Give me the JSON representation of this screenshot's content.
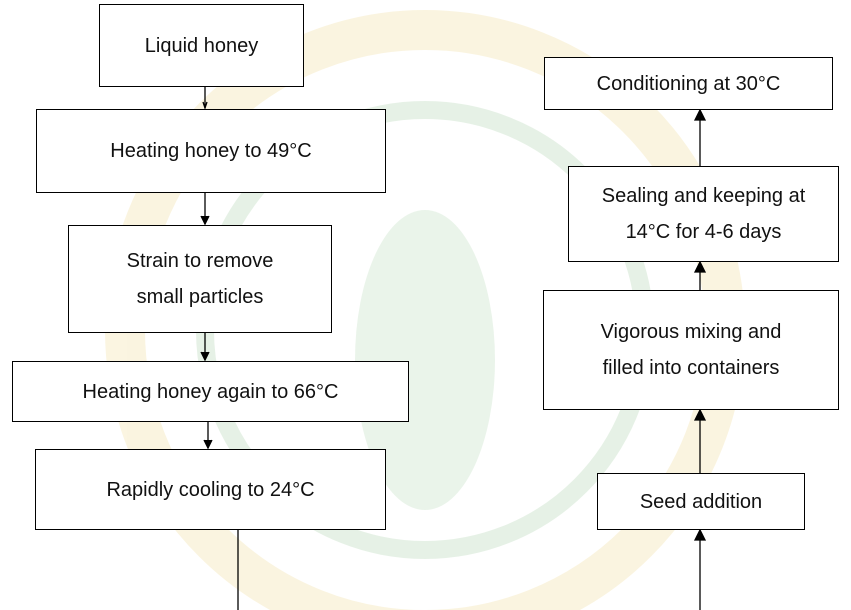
{
  "nodes": [
    {
      "lines": [
        "Liquid honey"
      ]
    },
    {
      "lines": [
        "Heating honey to 49°C"
      ]
    },
    {
      "lines": [
        "Strain to remove",
        "small particles"
      ]
    },
    {
      "lines": [
        "Heating honey again to 66°C"
      ]
    },
    {
      "lines": [
        "Rapidly cooling to 24°C"
      ]
    },
    {
      "lines": [
        "Seed addition"
      ]
    },
    {
      "lines": [
        "Vigorous mixing and",
        "filled into containers"
      ]
    },
    {
      "lines": [
        "Sealing and keeping at",
        "14°C for 4-6 days"
      ]
    },
    {
      "lines": [
        "Conditioning at 30°C"
      ]
    }
  ]
}
